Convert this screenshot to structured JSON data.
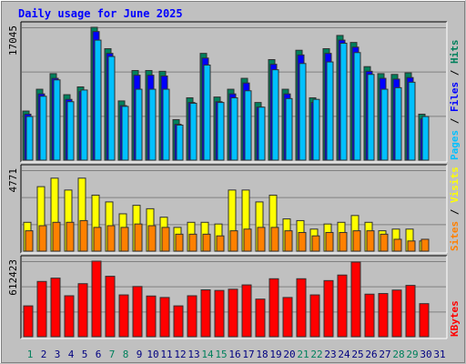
{
  "chart_data": {
    "type": "bar",
    "title": "Daily usage for June 2025",
    "categories": [
      "1",
      "2",
      "3",
      "4",
      "5",
      "6",
      "7",
      "8",
      "9",
      "10",
      "11",
      "12",
      "13",
      "14",
      "15",
      "16",
      "17",
      "18",
      "19",
      "20",
      "21",
      "22",
      "23",
      "24",
      "25",
      "26",
      "27",
      "28",
      "29",
      "30",
      "31"
    ],
    "weekend_days": [
      "1",
      "7",
      "8",
      "14",
      "15",
      "21",
      "22",
      "28",
      "29"
    ],
    "panels": [
      {
        "id": "hits-files-pages",
        "ymax_label": "17045",
        "ylim": [
          0,
          17045
        ],
        "legend": [
          "Pages",
          "Files",
          "Hits"
        ],
        "series": [
          {
            "name": "Hits",
            "color": "#00805c",
            "values": [
              6300,
              9100,
              11100,
              8400,
              9400,
              17045,
              14300,
              7600,
              11500,
              11500,
              11400,
              5200,
              8000,
              13700,
              8100,
              9100,
              10500,
              7400,
              12900,
              9100,
              14100,
              8000,
              14300,
              16000,
              15100,
              12000,
              11100,
              11000,
              11200,
              5900,
              null
            ]
          },
          {
            "name": "Files",
            "color": "#0000ff",
            "values": [
              5900,
              8500,
              10500,
              7800,
              8800,
              16500,
              13700,
              7000,
              10900,
              10900,
              10800,
              4600,
              7400,
              13100,
              7500,
              8500,
              9900,
              6800,
              12300,
              8500,
              13500,
              7400,
              13700,
              15400,
              14500,
              11400,
              10500,
              10400,
              10600,
              5300,
              null
            ]
          },
          {
            "name": "Pages",
            "color": "#00c0ff",
            "values": [
              5600,
              8200,
              10300,
              7500,
              9000,
              15400,
              13300,
              6900,
              9100,
              9100,
              9100,
              4500,
              7300,
              12200,
              7400,
              8000,
              8900,
              6800,
              11600,
              7900,
              12400,
              7800,
              12600,
              15000,
              13800,
              11000,
              9100,
              9300,
              10000,
              5600,
              null
            ]
          }
        ]
      },
      {
        "id": "visits-sites",
        "ymax_label": "4771",
        "ylim": [
          0,
          4771
        ],
        "legend": [
          "Sites",
          "Visits"
        ],
        "series": [
          {
            "name": "Visits",
            "color": "#ffff00",
            "values": [
              1700,
              3800,
              4300,
              3600,
              4300,
              3300,
              2900,
              2200,
              2700,
              2500,
              2000,
              1400,
              1700,
              1700,
              1600,
              3600,
              3600,
              2900,
              3300,
              1900,
              1800,
              1300,
              1600,
              1700,
              2100,
              1700,
              1200,
              1300,
              1300,
              600,
              null
            ]
          },
          {
            "name": "Sites",
            "color": "#ff8000",
            "values": [
              1200,
              1500,
              1700,
              1700,
              1800,
              1400,
              1500,
              1400,
              1600,
              1500,
              1400,
              1000,
              1000,
              1000,
              900,
              1200,
              1300,
              1400,
              1400,
              1200,
              1100,
              900,
              1100,
              1100,
              1200,
              1200,
              1000,
              700,
              600,
              700,
              null
            ]
          }
        ]
      },
      {
        "id": "kbytes",
        "ymax_label": "612423",
        "ylim": [
          0,
          612423
        ],
        "legend": [
          "KBytes"
        ],
        "series": [
          {
            "name": "KBytes",
            "color": "#ff0000",
            "values": [
              250000,
              448000,
              475000,
              332000,
              430000,
              612423,
              490000,
              339000,
              407000,
              330000,
              318000,
              250000,
              332000,
              380000,
              375000,
              385000,
              420000,
              305000,
              470000,
              318000,
              470000,
              339000,
              455000,
              500000,
              605000,
              345000,
              350000,
              378000,
              416000,
              268000,
              null
            ]
          }
        ]
      }
    ]
  },
  "colors": {
    "background": "#c0c0c0",
    "plot_background": "#c0c0c0",
    "title": "#0000ff",
    "day_label": "#000080",
    "weekend_label": "#00805c",
    "gridline": "#808080",
    "shadow": "#303030"
  }
}
